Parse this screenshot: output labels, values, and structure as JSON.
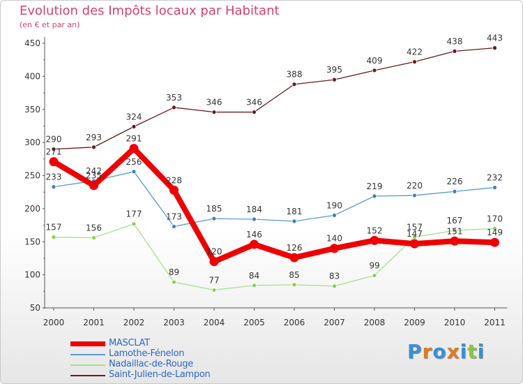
{
  "header": {
    "title": "Evolution des Impôts locaux par Habitant",
    "subtitle": "(en € et par an)"
  },
  "chart_data": {
    "type": "line",
    "title": "Evolution des Impôts locaux par Habitant",
    "subtitle": "(en € et par an)",
    "xlabel": "",
    "ylabel": "",
    "ylim": [
      50,
      450
    ],
    "yticks": [
      50,
      100,
      150,
      200,
      250,
      300,
      350,
      400,
      450
    ],
    "x": [
      2000,
      2001,
      2002,
      2003,
      2004,
      2005,
      2006,
      2007,
      2008,
      2009,
      2010,
      2011
    ],
    "grid": false,
    "legend_position": "bottom-left",
    "series": [
      {
        "name": "Saint-Julien-de-Lampon",
        "color": "#6b1a1a",
        "marker": "#6b1a1a",
        "values": [
          290,
          293,
          324,
          353,
          346,
          346,
          388,
          395,
          409,
          422,
          438,
          443
        ]
      },
      {
        "name": "Lamothe-Fénelon",
        "color": "#5b97cf",
        "marker": "#3e7fc4",
        "values": [
          233,
          242,
          256,
          173,
          185,
          184,
          181,
          190,
          219,
          220,
          226,
          232
        ]
      },
      {
        "name": "Nadaillac-de-Rouge",
        "color": "#a7e08b",
        "marker": "#8ccf4f",
        "values": [
          157,
          156,
          177,
          89,
          77,
          84,
          85,
          83,
          99,
          157,
          167,
          170
        ]
      },
      {
        "name": "MASCLAT",
        "color": "#ee0000",
        "marker": "#ee0000",
        "values": [
          271,
          235,
          291,
          228,
          120,
          146,
          126,
          140,
          152,
          147,
          151,
          149
        ]
      }
    ],
    "legend": [
      "MASCLAT",
      "Lamothe-Fénelon",
      "Nadaillac-de-Rouge",
      "Saint-Julien-de-Lampon"
    ]
  },
  "legend": {
    "items": [
      {
        "label": "MASCLAT",
        "color": "#ee0000"
      },
      {
        "label": "Lamothe-Fénelon",
        "color": "#5b97cf"
      },
      {
        "label": "Nadaillac-de-Rouge",
        "color": "#a7e08b"
      },
      {
        "label": "Saint-Julien-de-Lampon",
        "color": "#6b1a1a"
      }
    ]
  },
  "logo": {
    "text": "Proxiti"
  }
}
